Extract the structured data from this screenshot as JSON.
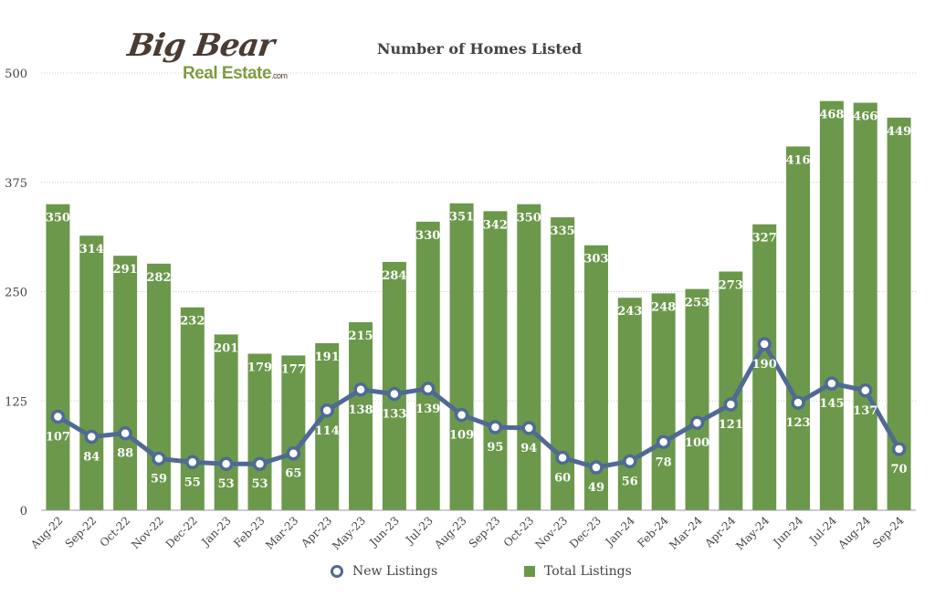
{
  "logo": {
    "line1": "Big Bear",
    "line2": "Real Estate",
    "suffix": ".com"
  },
  "colors": {
    "bar": "#6b984b",
    "line": "#4f6a93",
    "grid": "#c8c8c8",
    "text": "#444444"
  },
  "chart_data": {
    "type": "bar",
    "title": "Number of Homes Listed",
    "xlabel": "",
    "ylabel": "",
    "ylim": [
      0,
      500
    ],
    "yticks": [
      0,
      125,
      250,
      375,
      500
    ],
    "grid": true,
    "legend_position": "bottom",
    "categories": [
      "Aug-22",
      "Sep-22",
      "Oct-22",
      "Nov-22",
      "Dec-22",
      "Jan-23",
      "Feb-23",
      "Mar-23",
      "Apr-23",
      "May-23",
      "Jun-23",
      "Jul-23",
      "Aug-23",
      "Sep-23",
      "Oct-23",
      "Nov-23",
      "Dec-23",
      "Jan-24",
      "Feb-24",
      "Mar-24",
      "Apr-24",
      "May-24",
      "Jun-24",
      "Jul-24",
      "Aug-24",
      "Sep-24"
    ],
    "series": [
      {
        "name": "New Listings",
        "type": "line",
        "values": [
          107,
          84,
          88,
          59,
          55,
          53,
          53,
          65,
          114,
          138,
          133,
          139,
          109,
          95,
          94,
          60,
          49,
          56,
          78,
          100,
          121,
          190,
          123,
          145,
          137,
          70
        ]
      },
      {
        "name": "Total Listings",
        "type": "bar",
        "values": [
          350,
          314,
          291,
          282,
          232,
          201,
          179,
          177,
          191,
          215,
          284,
          330,
          351,
          342,
          350,
          335,
          303,
          243,
          248,
          253,
          273,
          327,
          416,
          468,
          466,
          449
        ]
      }
    ]
  }
}
